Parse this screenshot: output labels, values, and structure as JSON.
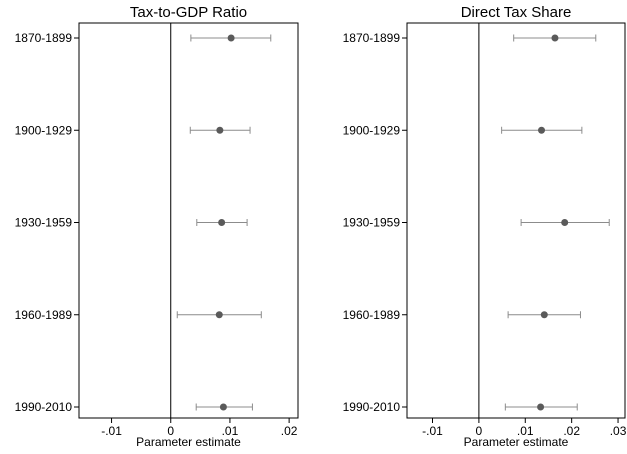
{
  "chart_data": [
    {
      "type": "scatter",
      "title": "Tax-to-GDP Ratio",
      "xlabel": "Parameter estimate",
      "ylabel": "",
      "xlim": [
        -0.0155,
        0.0215
      ],
      "xticks": [
        -0.01,
        0,
        0.01,
        0.02
      ],
      "xtick_labels": [
        "-.01",
        "0",
        ".01",
        ".02"
      ],
      "reference_line": 0,
      "grid": false,
      "legend": "none",
      "categories": [
        "1870-1899",
        "1900-1929",
        "1930-1959",
        "1960-1989",
        "1990-2010"
      ],
      "estimates": [
        0.0102,
        0.0083,
        0.0086,
        0.0082,
        0.0089
      ],
      "ci_low": [
        0.0034,
        0.0033,
        0.0044,
        0.0011,
        0.0043
      ],
      "ci_high": [
        0.0169,
        0.0134,
        0.0129,
        0.0153,
        0.0138
      ]
    },
    {
      "type": "scatter",
      "title": "Direct Tax Share",
      "xlabel": "Parameter estimate",
      "ylabel": "",
      "xlim": [
        -0.0155,
        0.0315
      ],
      "xticks": [
        -0.01,
        0,
        0.01,
        0.02,
        0.03
      ],
      "xtick_labels": [
        "-.01",
        "0",
        ".01",
        ".02",
        ".03"
      ],
      "reference_line": 0,
      "grid": false,
      "legend": "none",
      "categories": [
        "1870-1899",
        "1900-1929",
        "1930-1959",
        "1960-1989",
        "1990-2010"
      ],
      "estimates": [
        0.0164,
        0.0135,
        0.0185,
        0.0141,
        0.0133
      ],
      "ci_low": [
        0.0075,
        0.0049,
        0.0091,
        0.0063,
        0.0057
      ],
      "ci_high": [
        0.0252,
        0.0222,
        0.0281,
        0.0219,
        0.0212
      ]
    }
  ],
  "style": {
    "marker_color": "#5a5a5a",
    "ci_color": "#8c8c8c",
    "frame_color": "#000000"
  }
}
